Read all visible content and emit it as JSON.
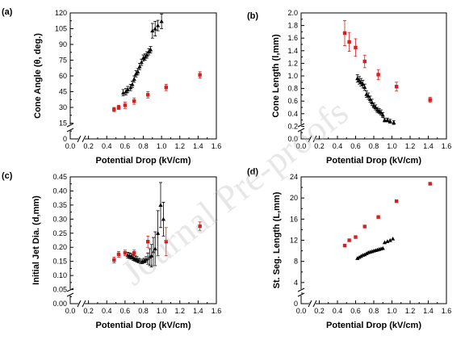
{
  "watermark": "Journal Pre-proofs",
  "colors": {
    "black_series": "#000000",
    "red_series": "#d42020"
  },
  "chart_data": [
    {
      "type": "scatter",
      "panel_label": "(a)",
      "xlabel": "Potential Drop (kV/cm)",
      "ylabel": "Cone Angle (θ, deg.)",
      "xlim": [
        0.0,
        1.6
      ],
      "ylim": [
        0,
        120
      ],
      "xticks": [
        "0.0",
        "0.2",
        "0.4",
        "0.6",
        "0.8",
        "1.0",
        "1.2",
        "1.4",
        "1.6"
      ],
      "yticks": [
        "0",
        "15",
        "30",
        "45",
        "60",
        "75",
        "90",
        "105",
        "120"
      ],
      "axis_break": true,
      "series": [
        {
          "marker": "triangle",
          "color": "black",
          "x": [
            0.58,
            0.61,
            0.63,
            0.66,
            0.68,
            0.7,
            0.72,
            0.74,
            0.76,
            0.78,
            0.8,
            0.82,
            0.84,
            0.86,
            0.88,
            0.9,
            0.93,
            0.96,
            1.0
          ],
          "y": [
            44,
            45,
            47,
            49,
            52,
            57,
            62,
            64,
            69,
            73,
            77,
            78,
            80,
            83,
            85,
            103,
            105,
            108,
            112
          ],
          "err": [
            3,
            3,
            3,
            3,
            3,
            3,
            3,
            3,
            3,
            3,
            3,
            3,
            3,
            3,
            3,
            7,
            7,
            5,
            7
          ]
        },
        {
          "marker": "square",
          "color": "red",
          "x": [
            0.48,
            0.53,
            0.6,
            0.7,
            0.85,
            1.05,
            1.42
          ],
          "y": [
            28,
            30,
            32,
            36,
            42,
            49,
            61
          ],
          "err": [
            2,
            2,
            3,
            3,
            3,
            3,
            3
          ]
        }
      ]
    },
    {
      "type": "scatter",
      "panel_label": "(b)",
      "xlabel": "Potential Drop (kV/cm)",
      "ylabel": "Cone Length (l,mm)",
      "xlim": [
        0.0,
        1.6
      ],
      "ylim": [
        0.0,
        2.0
      ],
      "xticks": [
        "0.0",
        "0.2",
        "0.4",
        "0.6",
        "0.8",
        "1.0",
        "1.2",
        "1.4",
        "1.6"
      ],
      "yticks": [
        "0.0",
        "0.2",
        "0.4",
        "0.6",
        "0.8",
        "1.0",
        "1.2",
        "1.4",
        "1.6",
        "1.8",
        "2.0"
      ],
      "axis_break": true,
      "series": [
        {
          "marker": "triangle",
          "color": "black",
          "x": [
            0.62,
            0.64,
            0.66,
            0.68,
            0.7,
            0.72,
            0.74,
            0.76,
            0.78,
            0.8,
            0.82,
            0.84,
            0.86,
            0.88,
            0.9,
            0.92,
            0.95,
            0.98,
            1.02
          ],
          "y": [
            0.96,
            0.93,
            0.9,
            0.87,
            0.82,
            0.71,
            0.68,
            0.63,
            0.58,
            0.53,
            0.5,
            0.46,
            0.44,
            0.42,
            0.38,
            0.3,
            0.3,
            0.28,
            0.26
          ],
          "err": [
            0.06,
            0.06,
            0.06,
            0.06,
            0.05,
            0.05,
            0.05,
            0.05,
            0.05,
            0.04,
            0.04,
            0.04,
            0.04,
            0.04,
            0.04,
            0.03,
            0.03,
            0.03,
            0.03
          ]
        },
        {
          "marker": "square",
          "color": "red",
          "x": [
            0.48,
            0.53,
            0.6,
            0.7,
            0.85,
            1.05,
            1.42
          ],
          "y": [
            1.68,
            1.54,
            1.45,
            1.23,
            1.02,
            0.83,
            0.62
          ],
          "err": [
            0.2,
            0.15,
            0.14,
            0.1,
            0.08,
            0.07,
            0.04
          ]
        }
      ]
    },
    {
      "type": "scatter",
      "panel_label": "(c)",
      "xlabel": "Potential Drop (kV/cm)",
      "ylabel": "Initial Jet Dia. (d,mm)",
      "xlim": [
        0.0,
        1.6
      ],
      "ylim": [
        0.0,
        0.45
      ],
      "xticks": [
        "0.0",
        "0.2",
        "0.4",
        "0.6",
        "0.8",
        "1.0",
        "1.2",
        "1.4",
        "1.6"
      ],
      "yticks": [
        "0.00",
        "0.05",
        "0.10",
        "0.15",
        "0.20",
        "0.25",
        "0.30",
        "0.35",
        "0.40",
        "0.45"
      ],
      "axis_break": true,
      "series": [
        {
          "marker": "triangle",
          "color": "black",
          "x": [
            0.63,
            0.65,
            0.67,
            0.69,
            0.71,
            0.73,
            0.75,
            0.77,
            0.79,
            0.81,
            0.83,
            0.85,
            0.87,
            0.89,
            0.91,
            0.93,
            0.96,
            0.99,
            1.02
          ],
          "y": [
            0.172,
            0.17,
            0.168,
            0.163,
            0.16,
            0.157,
            0.153,
            0.15,
            0.15,
            0.153,
            0.157,
            0.16,
            0.165,
            0.17,
            0.185,
            0.195,
            0.25,
            0.35,
            0.3
          ],
          "err": [
            0.01,
            0.01,
            0.01,
            0.01,
            0.01,
            0.01,
            0.008,
            0.008,
            0.008,
            0.008,
            0.01,
            0.02,
            0.03,
            0.04,
            0.05,
            0.06,
            0.08,
            0.08,
            0.06
          ]
        },
        {
          "marker": "square",
          "color": "red",
          "x": [
            0.48,
            0.53,
            0.6,
            0.7,
            0.85,
            1.05,
            1.42
          ],
          "y": [
            0.155,
            0.175,
            0.18,
            0.18,
            0.22,
            0.22,
            0.275
          ],
          "err": [
            0.01,
            0.01,
            0.01,
            0.01,
            0.02,
            0.05,
            0.015
          ]
        }
      ]
    },
    {
      "type": "scatter",
      "panel_label": "(d)",
      "xlabel": "Potential Drop (kV/cm)",
      "ylabel": "St. Seg. Length (L,mm)",
      "xlim": [
        0.0,
        1.6
      ],
      "ylim": [
        0,
        24
      ],
      "xticks": [
        "0.0",
        "0.2",
        "0.4",
        "0.6",
        "0.8",
        "1.0",
        "1.2",
        "1.4",
        "1.6"
      ],
      "yticks": [
        "0",
        "4",
        "8",
        "12",
        "16",
        "20",
        "24"
      ],
      "axis_break": true,
      "series": [
        {
          "marker": "triangle",
          "color": "black",
          "x": [
            0.62,
            0.64,
            0.66,
            0.68,
            0.7,
            0.72,
            0.74,
            0.76,
            0.78,
            0.8,
            0.82,
            0.84,
            0.86,
            0.88,
            0.9,
            0.92,
            0.95,
            0.98,
            1.01
          ],
          "y": [
            8.6,
            8.8,
            9.0,
            9.2,
            9.3,
            9.5,
            9.7,
            9.8,
            9.9,
            10.0,
            10.1,
            10.2,
            10.3,
            10.4,
            10.5,
            11.6,
            11.8,
            12.0,
            12.3
          ],
          "err": [
            0,
            0,
            0,
            0,
            0,
            0,
            0,
            0,
            0,
            0,
            0,
            0,
            0,
            0,
            0,
            0,
            0,
            0,
            0
          ]
        },
        {
          "marker": "square",
          "color": "red",
          "x": [
            0.48,
            0.53,
            0.6,
            0.7,
            0.85,
            1.05,
            1.42
          ],
          "y": [
            11.0,
            12.0,
            12.6,
            14.6,
            16.4,
            19.4,
            22.7
          ],
          "err": [
            0,
            0,
            0,
            0,
            0,
            0,
            0
          ]
        }
      ]
    }
  ]
}
